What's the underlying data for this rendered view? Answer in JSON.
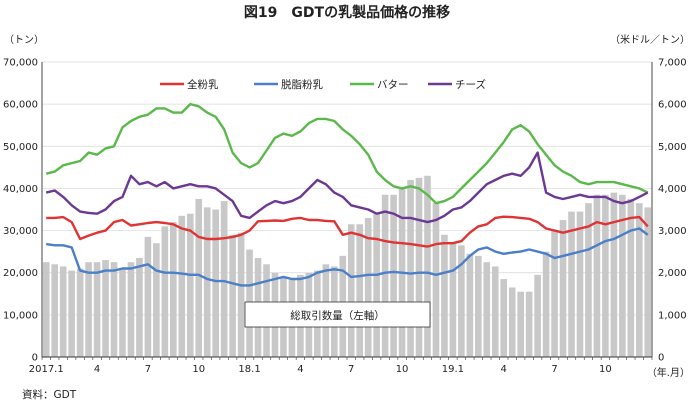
{
  "chart_data": {
    "type": "bar+line",
    "title": "図19　GDTの乳製品価格の推移",
    "left_unit": "（トン）",
    "right_unit": "（米ドル／トン）",
    "x_axis_suffix": "（年.月）",
    "source": "資料：GDT",
    "annotation": "総取引数量（左軸）",
    "left_ylim": [
      0,
      70000
    ],
    "right_ylim": [
      0,
      7000
    ],
    "left_ticks": [
      "0",
      "10,000",
      "20,000",
      "30,000",
      "40,000",
      "50,000",
      "60,000",
      "70,000"
    ],
    "right_ticks": [
      "0",
      "1,000",
      "2,000",
      "3,000",
      "4,000",
      "5,000",
      "6,000",
      "7,000"
    ],
    "x_ticks": [
      {
        "i": 0,
        "label": "2017.1"
      },
      {
        "i": 6,
        "label": "4"
      },
      {
        "i": 12,
        "label": "7"
      },
      {
        "i": 18,
        "label": "10"
      },
      {
        "i": 24,
        "label": "18.1"
      },
      {
        "i": 30,
        "label": "4"
      },
      {
        "i": 36,
        "label": "7"
      },
      {
        "i": 42,
        "label": "10"
      },
      {
        "i": 48,
        "label": "19.1"
      },
      {
        "i": 54,
        "label": "4"
      },
      {
        "i": 60,
        "label": "7"
      },
      {
        "i": 66,
        "label": "10"
      }
    ],
    "n_points": 72,
    "bars": {
      "name": "総取引数量（左軸）",
      "color": "#c8c8c8",
      "values": [
        22500,
        22000,
        21500,
        20500,
        21000,
        22500,
        22500,
        23000,
        22500,
        21000,
        22500,
        23500,
        28500,
        27000,
        31000,
        32000,
        33500,
        34000,
        37500,
        35500,
        35000,
        37000,
        29000,
        29500,
        25500,
        23500,
        22000,
        20000,
        19000,
        18500,
        19500,
        20000,
        20500,
        22000,
        21500,
        24000,
        31500,
        31500,
        33000,
        34000,
        38500,
        38500,
        40000,
        42000,
        42500,
        43000,
        36500,
        29000,
        27000,
        26500,
        24500,
        24000,
        22500,
        21500,
        18500,
        16500,
        15500,
        15500,
        19500,
        25000,
        30000,
        32500,
        34500,
        34500,
        36500,
        38500,
        38500,
        39000,
        38500,
        37500,
        36500,
        35500
      ]
    },
    "series": [
      {
        "name": "全粉乳",
        "color": "#e03333",
        "axis": "right",
        "values": [
          3300,
          3300,
          3320,
          3200,
          2800,
          2880,
          2950,
          3000,
          3200,
          3250,
          3120,
          3150,
          3180,
          3200,
          3180,
          3150,
          3050,
          3000,
          2850,
          2800,
          2800,
          2820,
          2850,
          2900,
          3000,
          3220,
          3230,
          3240,
          3230,
          3280,
          3300,
          3250,
          3250,
          3230,
          3220,
          2900,
          2950,
          2900,
          2820,
          2800,
          2750,
          2720,
          2700,
          2680,
          2650,
          2620,
          2680,
          2700,
          2700,
          2750,
          2950,
          3100,
          3150,
          3300,
          3330,
          3320,
          3300,
          3280,
          3200,
          3050,
          3000,
          2950,
          3000,
          3050,
          3100,
          3200,
          3150,
          3200,
          3250,
          3300,
          3320,
          3100
        ]
      },
      {
        "name": "脱脂粉乳",
        "color": "#4b7fc9",
        "axis": "right",
        "values": [
          2680,
          2650,
          2650,
          2600,
          2050,
          2000,
          2000,
          2050,
          2050,
          2100,
          2100,
          2150,
          2200,
          2050,
          2000,
          2000,
          1980,
          1950,
          1950,
          1850,
          1800,
          1800,
          1750,
          1700,
          1700,
          1750,
          1800,
          1850,
          1900,
          1850,
          1850,
          1900,
          2000,
          2050,
          2080,
          2050,
          1900,
          1920,
          1950,
          1950,
          2000,
          2020,
          2000,
          1980,
          2000,
          2000,
          1950,
          2000,
          2050,
          2200,
          2400,
          2550,
          2600,
          2500,
          2450,
          2480,
          2500,
          2550,
          2500,
          2450,
          2350,
          2400,
          2450,
          2500,
          2550,
          2650,
          2750,
          2800,
          2900,
          3000,
          3050,
          2900
        ]
      },
      {
        "name": "バター",
        "color": "#5ab94a",
        "axis": "right",
        "values": [
          4350,
          4400,
          4550,
          4600,
          4650,
          4850,
          4800,
          4950,
          5000,
          5450,
          5600,
          5700,
          5750,
          5900,
          5900,
          5800,
          5800,
          6000,
          5950,
          5800,
          5700,
          5400,
          4850,
          4600,
          4500,
          4600,
          4900,
          5200,
          5300,
          5250,
          5350,
          5550,
          5650,
          5650,
          5600,
          5400,
          5250,
          5050,
          4800,
          4400,
          4200,
          4050,
          4000,
          4050,
          4000,
          3850,
          3650,
          3700,
          3800,
          4000,
          4200,
          4400,
          4600,
          4850,
          5100,
          5400,
          5500,
          5350,
          5050,
          4800,
          4550,
          4400,
          4300,
          4150,
          4100,
          4150,
          4150,
          4150,
          4100,
          4050,
          4000,
          3900
        ]
      },
      {
        "name": "チーズ",
        "color": "#6b3894",
        "axis": "right",
        "values": [
          3900,
          3950,
          3800,
          3600,
          3450,
          3420,
          3400,
          3500,
          3700,
          3800,
          4300,
          4100,
          4150,
          4050,
          4150,
          4000,
          4050,
          4100,
          4050,
          4050,
          4000,
          3850,
          3700,
          3350,
          3300,
          3450,
          3600,
          3700,
          3650,
          3700,
          3800,
          4000,
          4200,
          4100,
          3900,
          3800,
          3600,
          3550,
          3500,
          3400,
          3450,
          3400,
          3300,
          3300,
          3250,
          3200,
          3250,
          3350,
          3500,
          3550,
          3700,
          3900,
          4100,
          4200,
          4300,
          4350,
          4300,
          4500,
          4850,
          3900,
          3800,
          3750,
          3800,
          3850,
          3800,
          3800,
          3800,
          3700,
          3650,
          3700,
          3800,
          3900
        ]
      }
    ],
    "legend_placement": "top-center, inside plot"
  }
}
